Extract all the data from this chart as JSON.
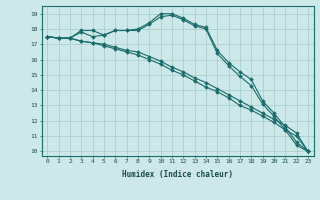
{
  "xlabel": "Humidex (Indice chaleur)",
  "ylabel": "",
  "bg_color": "#cce8e8",
  "grid_color": "#aad0d0",
  "line_color": "#1a6b6b",
  "xlim": [
    -0.5,
    23.5
  ],
  "ylim": [
    9.7,
    19.5
  ],
  "xticks": [
    0,
    1,
    2,
    3,
    4,
    5,
    6,
    7,
    8,
    9,
    10,
    11,
    12,
    13,
    14,
    15,
    16,
    17,
    18,
    19,
    20,
    21,
    22,
    23
  ],
  "yticks": [
    10,
    11,
    12,
    13,
    14,
    15,
    16,
    17,
    18,
    19
  ],
  "series": [
    {
      "x": [
        0,
        1,
        2,
        3,
        4,
        5,
        6,
        7,
        8,
        9,
        10,
        11,
        12,
        13,
        14,
        15,
        16,
        17,
        18,
        19,
        20,
        21,
        22,
        23
      ],
      "y": [
        17.5,
        17.4,
        17.4,
        17.9,
        17.9,
        17.6,
        17.9,
        17.9,
        18.0,
        18.4,
        19.0,
        19.0,
        18.7,
        18.3,
        18.1,
        16.6,
        15.8,
        15.2,
        14.7,
        13.3,
        12.5,
        11.6,
        10.6,
        10.0
      ]
    },
    {
      "x": [
        0,
        1,
        2,
        3,
        4,
        5,
        6,
        7,
        8,
        9,
        10,
        11,
        12,
        13,
        14,
        15,
        16,
        17,
        18,
        19,
        20,
        21,
        22,
        23
      ],
      "y": [
        17.5,
        17.4,
        17.4,
        17.2,
        17.1,
        17.0,
        16.8,
        16.6,
        16.5,
        16.2,
        15.9,
        15.5,
        15.2,
        14.8,
        14.5,
        14.1,
        13.7,
        13.3,
        12.9,
        12.5,
        12.1,
        11.7,
        11.2,
        10.0
      ]
    },
    {
      "x": [
        0,
        1,
        2,
        3,
        4,
        5,
        6,
        7,
        8,
        9,
        10,
        11,
        12,
        13,
        14,
        15,
        16,
        17,
        18,
        19,
        20,
        21,
        22,
        23
      ],
      "y": [
        17.5,
        17.4,
        17.4,
        17.2,
        17.1,
        16.9,
        16.7,
        16.5,
        16.3,
        16.0,
        15.7,
        15.3,
        15.0,
        14.6,
        14.2,
        13.9,
        13.5,
        13.0,
        12.7,
        12.3,
        11.9,
        11.4,
        11.0,
        10.0
      ]
    },
    {
      "x": [
        0,
        1,
        2,
        3,
        4,
        5,
        6,
        7,
        8,
        9,
        10,
        11,
        12,
        13,
        14,
        15,
        16,
        17,
        18,
        19,
        20,
        21,
        22,
        23
      ],
      "y": [
        17.5,
        17.4,
        17.4,
        17.8,
        17.5,
        17.6,
        17.9,
        17.9,
        17.9,
        18.3,
        18.8,
        18.9,
        18.6,
        18.2,
        18.0,
        16.4,
        15.6,
        14.9,
        14.3,
        13.1,
        12.3,
        11.4,
        10.4,
        10.0
      ]
    }
  ]
}
